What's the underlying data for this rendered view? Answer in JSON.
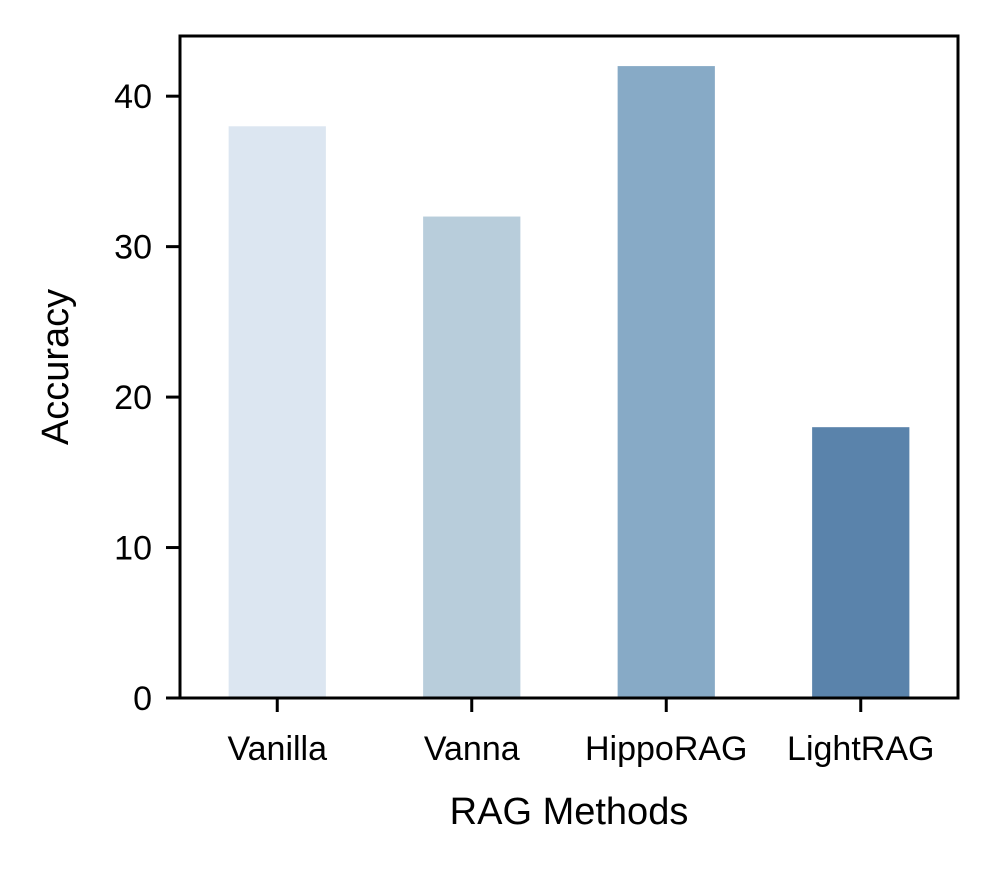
{
  "chart_data": {
    "type": "bar",
    "title": "",
    "xlabel": "RAG Methods",
    "ylabel": "Accuracy",
    "categories": [
      "Vanilla",
      "Vanna",
      "HippoRAG",
      "LightRAG"
    ],
    "values": [
      38,
      32,
      42,
      18
    ],
    "colors": [
      "#dce6f1",
      "#b8cddb",
      "#87aac6",
      "#5a83ab"
    ],
    "ylim": [
      0,
      44
    ],
    "yticks": [
      0,
      10,
      20,
      30,
      40
    ],
    "grid": false,
    "legend": "none"
  }
}
